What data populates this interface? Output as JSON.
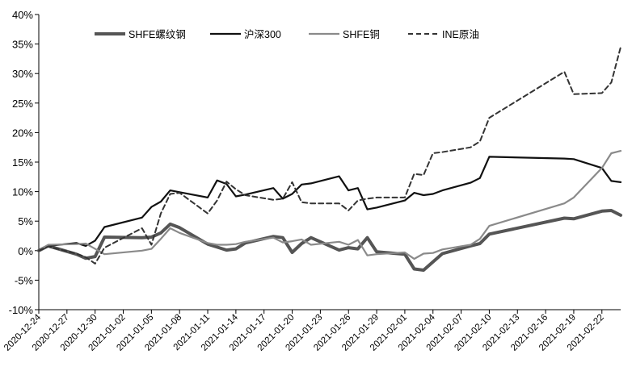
{
  "chart_data": {
    "type": "line",
    "title": "",
    "xlabel": "",
    "ylabel": "",
    "ylim": [
      -10,
      40
    ],
    "yticks": [
      "40%",
      "35%",
      "30%",
      "25%",
      "20%",
      "15%",
      "10%",
      "5%",
      "0%",
      "-5%",
      "-10%"
    ],
    "ytick_values": [
      40,
      35,
      30,
      25,
      20,
      15,
      10,
      5,
      0,
      -5,
      -10
    ],
    "xrange": [
      "2020-12-24",
      "2021-02-24"
    ],
    "xticks": [
      "2020-12-24",
      "2020-12-27",
      "2020-12-30",
      "2021-01-02",
      "2021-01-05",
      "2021-01-08",
      "2021-01-11",
      "2021-01-14",
      "2021-01-17",
      "2021-01-20",
      "2021-01-23",
      "2021-01-26",
      "2021-01-29",
      "2021-02-01",
      "2021-02-04",
      "2021-02-07",
      "2021-02-10",
      "2021-02-13",
      "2021-02-16",
      "2021-02-19",
      "2021-02-22"
    ],
    "grid": false,
    "legend_position": "top",
    "series": [
      {
        "name": "SHFE螺纹钢",
        "color": "#555555",
        "style": "thick",
        "x": [
          "2020-12-24",
          "2020-12-25",
          "2020-12-28",
          "2020-12-29",
          "2020-12-30",
          "2020-12-31",
          "2021-01-04",
          "2021-01-05",
          "2021-01-06",
          "2021-01-07",
          "2021-01-08",
          "2021-01-11",
          "2021-01-12",
          "2021-01-13",
          "2021-01-14",
          "2021-01-15",
          "2021-01-18",
          "2021-01-19",
          "2021-01-20",
          "2021-01-21",
          "2021-01-22",
          "2021-01-25",
          "2021-01-26",
          "2021-01-27",
          "2021-01-28",
          "2021-01-29",
          "2021-02-01",
          "2021-02-02",
          "2021-02-03",
          "2021-02-04",
          "2021-02-05",
          "2021-02-08",
          "2021-02-09",
          "2021-02-10",
          "2021-02-18",
          "2021-02-19",
          "2021-02-22",
          "2021-02-23",
          "2021-02-24"
        ],
        "values": [
          0.0,
          0.8,
          -0.6,
          -1.3,
          -1.0,
          2.3,
          2.2,
          2.3,
          3.0,
          4.5,
          3.9,
          1.1,
          0.6,
          0.1,
          0.3,
          1.3,
          2.4,
          2.2,
          -0.3,
          1.2,
          2.2,
          0.1,
          0.5,
          0.3,
          2.2,
          -0.2,
          -0.6,
          -3.1,
          -3.3,
          -1.9,
          -0.5,
          0.8,
          1.2,
          2.8,
          5.5,
          5.4,
          6.7,
          6.8,
          6.0
        ]
      },
      {
        "name": "沪深300",
        "color": "#111111",
        "style": "solid",
        "x": [
          "2020-12-24",
          "2020-12-25",
          "2020-12-28",
          "2020-12-29",
          "2020-12-30",
          "2020-12-31",
          "2021-01-04",
          "2021-01-05",
          "2021-01-06",
          "2021-01-07",
          "2021-01-08",
          "2021-01-11",
          "2021-01-12",
          "2021-01-13",
          "2021-01-14",
          "2021-01-15",
          "2021-01-18",
          "2021-01-19",
          "2021-01-20",
          "2021-01-21",
          "2021-01-22",
          "2021-01-25",
          "2021-01-26",
          "2021-01-27",
          "2021-01-28",
          "2021-01-29",
          "2021-02-01",
          "2021-02-02",
          "2021-02-03",
          "2021-02-04",
          "2021-02-05",
          "2021-02-08",
          "2021-02-09",
          "2021-02-10",
          "2021-02-18",
          "2021-02-19",
          "2021-02-22",
          "2021-02-23",
          "2021-02-24"
        ],
        "values": [
          0.0,
          0.8,
          1.3,
          0.8,
          1.7,
          4.0,
          5.6,
          7.4,
          8.3,
          10.2,
          9.9,
          9.0,
          11.9,
          11.3,
          9.2,
          9.5,
          10.6,
          8.8,
          9.6,
          11.2,
          11.4,
          12.6,
          10.2,
          10.6,
          7.0,
          7.3,
          8.5,
          9.8,
          9.4,
          9.6,
          10.2,
          11.5,
          12.3,
          15.9,
          15.6,
          15.5,
          14.0,
          11.8,
          11.6
        ]
      },
      {
        "name": "SHFE铜",
        "color": "#8a8a8a",
        "style": "solid",
        "x": [
          "2020-12-24",
          "2020-12-25",
          "2020-12-28",
          "2020-12-29",
          "2020-12-30",
          "2020-12-31",
          "2021-01-04",
          "2021-01-05",
          "2021-01-06",
          "2021-01-07",
          "2021-01-08",
          "2021-01-11",
          "2021-01-12",
          "2021-01-13",
          "2021-01-14",
          "2021-01-15",
          "2021-01-18",
          "2021-01-19",
          "2021-01-20",
          "2021-01-21",
          "2021-01-22",
          "2021-01-25",
          "2021-01-26",
          "2021-01-27",
          "2021-01-28",
          "2021-01-29",
          "2021-02-01",
          "2021-02-02",
          "2021-02-03",
          "2021-02-04",
          "2021-02-05",
          "2021-02-08",
          "2021-02-09",
          "2021-02-10",
          "2021-02-18",
          "2021-02-19",
          "2021-02-22",
          "2021-02-23",
          "2021-02-24"
        ],
        "values": [
          0.0,
          1.0,
          1.1,
          1.2,
          0.3,
          -0.6,
          0.0,
          0.3,
          2.0,
          3.8,
          3.0,
          1.3,
          1.0,
          1.0,
          1.1,
          1.5,
          2.2,
          1.4,
          1.6,
          1.9,
          1.0,
          1.5,
          1.0,
          1.8,
          -0.8,
          -0.6,
          -0.3,
          -1.4,
          -0.5,
          -0.4,
          0.2,
          1.0,
          2.0,
          4.2,
          8.0,
          9.0,
          14.0,
          16.5,
          16.9
        ]
      },
      {
        "name": "INE原油",
        "color": "#333333",
        "style": "dashed",
        "x": [
          "2020-12-24",
          "2020-12-25",
          "2020-12-28",
          "2020-12-29",
          "2020-12-30",
          "2020-12-31",
          "2021-01-04",
          "2021-01-05",
          "2021-01-06",
          "2021-01-07",
          "2021-01-08",
          "2021-01-11",
          "2021-01-12",
          "2021-01-13",
          "2021-01-14",
          "2021-01-15",
          "2021-01-18",
          "2021-01-19",
          "2021-01-20",
          "2021-01-21",
          "2021-01-22",
          "2021-01-25",
          "2021-01-26",
          "2021-01-27",
          "2021-01-28",
          "2021-01-29",
          "2021-02-01",
          "2021-02-02",
          "2021-02-03",
          "2021-02-04",
          "2021-02-05",
          "2021-02-08",
          "2021-02-09",
          "2021-02-10",
          "2021-02-18",
          "2021-02-19",
          "2021-02-22",
          "2021-02-23",
          "2021-02-24"
        ],
        "values": [
          0.0,
          0.7,
          -0.5,
          -1.1,
          -2.2,
          0.5,
          3.8,
          1.0,
          6.3,
          9.6,
          9.8,
          6.3,
          8.5,
          11.7,
          10.4,
          9.4,
          8.6,
          8.8,
          11.6,
          8.2,
          8.0,
          8.0,
          6.8,
          8.5,
          8.8,
          9.0,
          9.0,
          13.0,
          12.8,
          16.5,
          16.7,
          17.5,
          18.5,
          22.5,
          30.3,
          26.5,
          26.7,
          28.5,
          34.5
        ]
      }
    ]
  }
}
